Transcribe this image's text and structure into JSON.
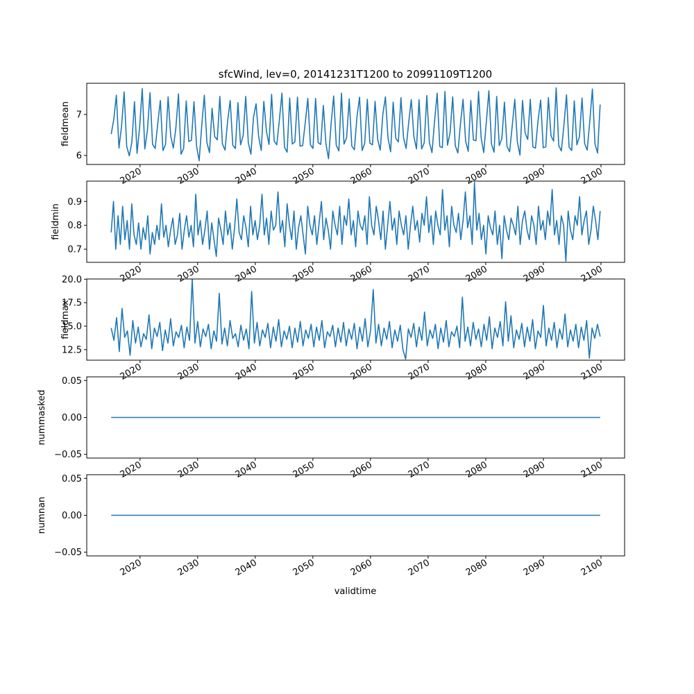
{
  "title": "sfcWind, lev=0, 20141231T1200 to 20991109T1200",
  "xlabel": "validtime",
  "line_color": "#1f77b4",
  "chart_data": {
    "type": "line",
    "x_start": "2014-12-31",
    "x_end": "2099-11-09",
    "x_ticks": [
      "2020",
      "2030",
      "2040",
      "2050",
      "2060",
      "2070",
      "2080",
      "2090",
      "2100"
    ],
    "panels": [
      {
        "ylabel": "fieldmean",
        "ylim": [
          5.78,
          7.76
        ],
        "yticks": [
          6,
          7
        ],
        "ytick_labels": [
          "6",
          "7"
        ],
        "values": [
          6.52,
          6.88,
          7.47,
          6.18,
          6.71,
          7.55,
          6.22,
          5.99,
          6.33,
          7.31,
          6.05,
          6.7,
          7.63,
          6.16,
          6.61,
          7.53,
          6.27,
          6.17,
          6.78,
          7.34,
          6.12,
          6.27,
          7.43,
          6.48,
          6.18,
          6.67,
          7.5,
          6.03,
          6.17,
          7.33,
          6.34,
          6.37,
          7.31,
          6.23,
          5.87,
          6.73,
          7.47,
          6.31,
          6.07,
          7.15,
          6.46,
          6.38,
          7.44,
          6.28,
          6.13,
          6.84,
          7.34,
          6.25,
          6.17,
          7.29,
          6.26,
          6.48,
          7.44,
          6.31,
          6.03,
          6.93,
          7.26,
          6.46,
          6.12,
          7.32,
          6.59,
          6.27,
          7.49,
          6.35,
          6.26,
          6.86,
          7.52,
          6.2,
          6.08,
          7.4,
          6.28,
          6.33,
          7.42,
          6.23,
          6.24,
          6.79,
          7.39,
          6.26,
          6.17,
          7.39,
          6.31,
          6.27,
          7.22,
          6.29,
          5.92,
          6.77,
          7.45,
          6.25,
          6.11,
          7.52,
          6.28,
          6.43,
          7.38,
          6.23,
          6.14,
          6.94,
          7.42,
          6.12,
          6.3,
          7.37,
          6.3,
          6.26,
          7.32,
          6.39,
          6.13,
          7.0,
          7.43,
          6.43,
          6.09,
          7.3,
          6.42,
          6.33,
          7.41,
          6.43,
          6.17,
          6.81,
          7.36,
          6.46,
          6.16,
          7.36,
          6.16,
          6.31,
          7.46,
          6.31,
          6.07,
          6.84,
          7.52,
          6.22,
          6.19,
          7.56,
          6.25,
          6.56,
          7.43,
          6.24,
          6.06,
          6.77,
          7.37,
          6.35,
          6.1,
          7.34,
          6.38,
          6.36,
          7.56,
          6.43,
          6.07,
          6.81,
          7.58,
          6.28,
          6.08,
          7.44,
          6.24,
          6.41,
          7.3,
          6.22,
          6.09,
          6.71,
          7.37,
          6.33,
          6.01,
          7.34,
          6.55,
          6.39,
          7.37,
          6.21,
          6.18,
          6.85,
          7.35,
          6.19,
          6.21,
          7.41,
          6.48,
          6.35,
          7.65,
          6.24,
          6.11,
          6.74,
          7.48,
          6.2,
          6.12,
          7.33,
          6.26,
          6.46,
          7.4,
          6.29,
          6.13,
          6.84,
          7.62,
          6.28,
          6.06,
          7.24
        ]
      },
      {
        "ylabel": "fieldmin",
        "ylim": [
          0.645,
          0.985
        ],
        "yticks": [
          0.7,
          0.8,
          0.9
        ],
        "ytick_labels": [
          "0.7",
          "0.8",
          "0.9"
        ],
        "values": [
          0.77,
          0.9,
          0.7,
          0.84,
          0.72,
          0.88,
          0.74,
          0.82,
          0.7,
          0.89,
          0.76,
          0.72,
          0.81,
          0.7,
          0.79,
          0.74,
          0.84,
          0.68,
          0.77,
          0.72,
          0.8,
          0.74,
          0.89,
          0.75,
          0.8,
          0.71,
          0.78,
          0.83,
          0.72,
          0.76,
          0.85,
          0.7,
          0.78,
          0.84,
          0.75,
          0.8,
          0.71,
          0.93,
          0.76,
          0.82,
          0.72,
          0.78,
          0.86,
          0.7,
          0.81,
          0.74,
          0.67,
          0.83,
          0.78,
          0.72,
          0.86,
          0.76,
          0.81,
          0.7,
          0.79,
          0.91,
          0.77,
          0.74,
          0.84,
          0.79,
          0.71,
          0.88,
          0.76,
          0.82,
          0.74,
          0.8,
          0.93,
          0.76,
          0.83,
          0.72,
          0.86,
          0.78,
          0.8,
          0.94,
          0.77,
          0.82,
          0.71,
          0.89,
          0.8,
          0.74,
          0.86,
          0.7,
          0.79,
          0.84,
          0.76,
          0.68,
          0.88,
          0.8,
          0.76,
          0.84,
          0.72,
          0.81,
          0.9,
          0.74,
          0.83,
          0.78,
          0.7,
          0.86,
          0.8,
          0.76,
          0.88,
          0.72,
          0.84,
          0.8,
          0.91,
          0.76,
          0.82,
          0.71,
          0.86,
          0.8,
          0.78,
          0.84,
          0.72,
          0.92,
          0.8,
          0.76,
          0.88,
          0.82,
          0.74,
          0.86,
          0.7,
          0.8,
          0.9,
          0.78,
          0.83,
          0.72,
          0.86,
          0.8,
          0.76,
          0.84,
          0.7,
          0.8,
          0.88,
          0.78,
          0.82,
          0.73,
          0.85,
          0.8,
          0.92,
          0.77,
          0.84,
          0.72,
          0.86,
          0.8,
          0.76,
          0.95,
          0.78,
          0.84,
          0.71,
          0.88,
          0.8,
          0.77,
          0.85,
          0.74,
          0.82,
          0.94,
          0.79,
          0.84,
          0.72,
          0.98,
          0.78,
          0.85,
          0.74,
          0.8,
          0.68,
          0.84,
          0.79,
          0.76,
          0.86,
          0.72,
          0.8,
          0.66,
          0.84,
          0.78,
          0.74,
          0.83,
          0.8,
          0.76,
          0.88,
          0.72,
          0.82,
          0.86,
          0.78,
          0.74,
          0.84,
          0.8,
          0.72,
          0.88,
          0.78,
          0.82,
          0.74,
          0.86,
          0.8,
          0.95,
          0.76,
          0.82,
          0.72,
          0.84,
          0.8,
          0.65,
          0.86,
          0.78,
          0.74,
          0.84,
          0.8,
          0.92,
          0.76,
          0.82,
          0.86,
          0.72,
          0.78,
          0.88,
          0.82,
          0.74,
          0.86
        ]
      },
      {
        "ylabel": "fieldmax",
        "ylim": [
          11.38,
          20.02
        ],
        "yticks": [
          12.5,
          15.0,
          17.5,
          20.0
        ],
        "ytick_labels": [
          "12.5",
          "15.0",
          "17.5",
          "20.0"
        ],
        "values": [
          14.8,
          13.5,
          15.9,
          12.3,
          16.9,
          13.8,
          14.5,
          11.9,
          15.6,
          13.2,
          14.9,
          12.8,
          14.2,
          13.6,
          16.2,
          12.6,
          14.8,
          13.9,
          15.4,
          12.4,
          14.6,
          13.2,
          15.8,
          12.9,
          14.4,
          13.8,
          15.1,
          12.7,
          14.9,
          13.5,
          20.0,
          13.2,
          15.5,
          12.8,
          14.7,
          13.9,
          15.2,
          12.6,
          14.5,
          13.4,
          18.5,
          13.1,
          14.8,
          12.9,
          15.6,
          13.7,
          14.2,
          12.8,
          15.1,
          13.5,
          14.7,
          12.6,
          18.7,
          13.2,
          15.4,
          12.9,
          14.6,
          13.8,
          15.3,
          12.7,
          14.9,
          13.4,
          15.7,
          12.8,
          14.5,
          13.6,
          15.0,
          12.7,
          14.8,
          13.3,
          15.5,
          12.9,
          14.6,
          13.7,
          15.2,
          12.8,
          14.9,
          13.5,
          15.6,
          12.7,
          14.4,
          13.9,
          15.1,
          12.8,
          14.8,
          13.3,
          15.4,
          12.9,
          14.7,
          13.6,
          15.3,
          12.6,
          14.9,
          13.4,
          15.8,
          12.8,
          14.5,
          18.9,
          13.2,
          15.2,
          12.9,
          14.8,
          13.6,
          15.5,
          12.7,
          14.6,
          13.4,
          15.1,
          12.5,
          11.5,
          14.7,
          13.8,
          15.3,
          12.8,
          14.9,
          13.5,
          16.5,
          12.9,
          14.6,
          13.7,
          15.2,
          12.6,
          14.8,
          13.3,
          15.6,
          12.8,
          14.4,
          13.9,
          15.0,
          12.7,
          18.1,
          13.4,
          14.9,
          12.9,
          15.4,
          13.6,
          14.7,
          12.8,
          15.2,
          13.5,
          16.0,
          12.6,
          14.8,
          13.8,
          15.5,
          12.9,
          17.6,
          13.4,
          16.1,
          12.7,
          14.6,
          13.6,
          15.3,
          12.8,
          14.9,
          13.4,
          15.7,
          12.6,
          14.5,
          13.8,
          17.2,
          12.9,
          14.8,
          13.5,
          15.4,
          12.7,
          14.7,
          13.6,
          16.3,
          12.8,
          14.6,
          13.4,
          15.2,
          12.7,
          14.9,
          13.5,
          15.6,
          11.6,
          14.8,
          13.7,
          15.2,
          13.9
        ]
      },
      {
        "ylabel": "nummasked",
        "ylim": [
          -0.055,
          0.055
        ],
        "yticks": [
          -0.05,
          0.0,
          0.05
        ],
        "ytick_labels": [
          "−0.05",
          "0.00",
          "0.05"
        ],
        "values": [
          0,
          0
        ]
      },
      {
        "ylabel": "numnan",
        "ylim": [
          -0.055,
          0.055
        ],
        "yticks": [
          -0.05,
          0.0,
          0.05
        ],
        "ytick_labels": [
          "−0.05",
          "0.00",
          "0.05"
        ],
        "values": [
          0,
          0
        ]
      }
    ]
  }
}
